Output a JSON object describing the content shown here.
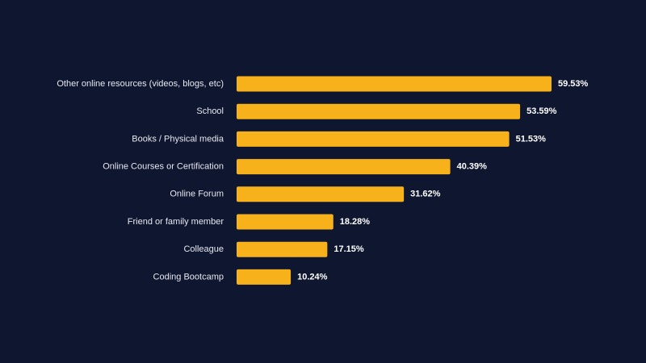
{
  "chart_data": {
    "type": "bar",
    "orientation": "horizontal",
    "categories": [
      "Other online resources (videos, blogs, etc)",
      "School",
      "Books / Physical media",
      "Online Courses or Certification",
      "Online Forum",
      "Friend or family member",
      "Colleague",
      "Coding Bootcamp"
    ],
    "values": [
      59.53,
      53.59,
      51.53,
      40.39,
      31.62,
      18.28,
      17.15,
      10.24
    ],
    "value_labels": [
      "59.53%",
      "53.59%",
      "51.53%",
      "40.39%",
      "31.62%",
      "18.28%",
      "17.15%",
      "10.24%"
    ],
    "unit": "%",
    "xlim": [
      0,
      59.53
    ],
    "title": "",
    "xlabel": "",
    "ylabel": "",
    "grid": false,
    "legend": "none",
    "colors": {
      "background": "#0f1630",
      "bar": "#f7b21b",
      "category_text": "#e6e8ef",
      "value_text": "#ffffff"
    }
  }
}
